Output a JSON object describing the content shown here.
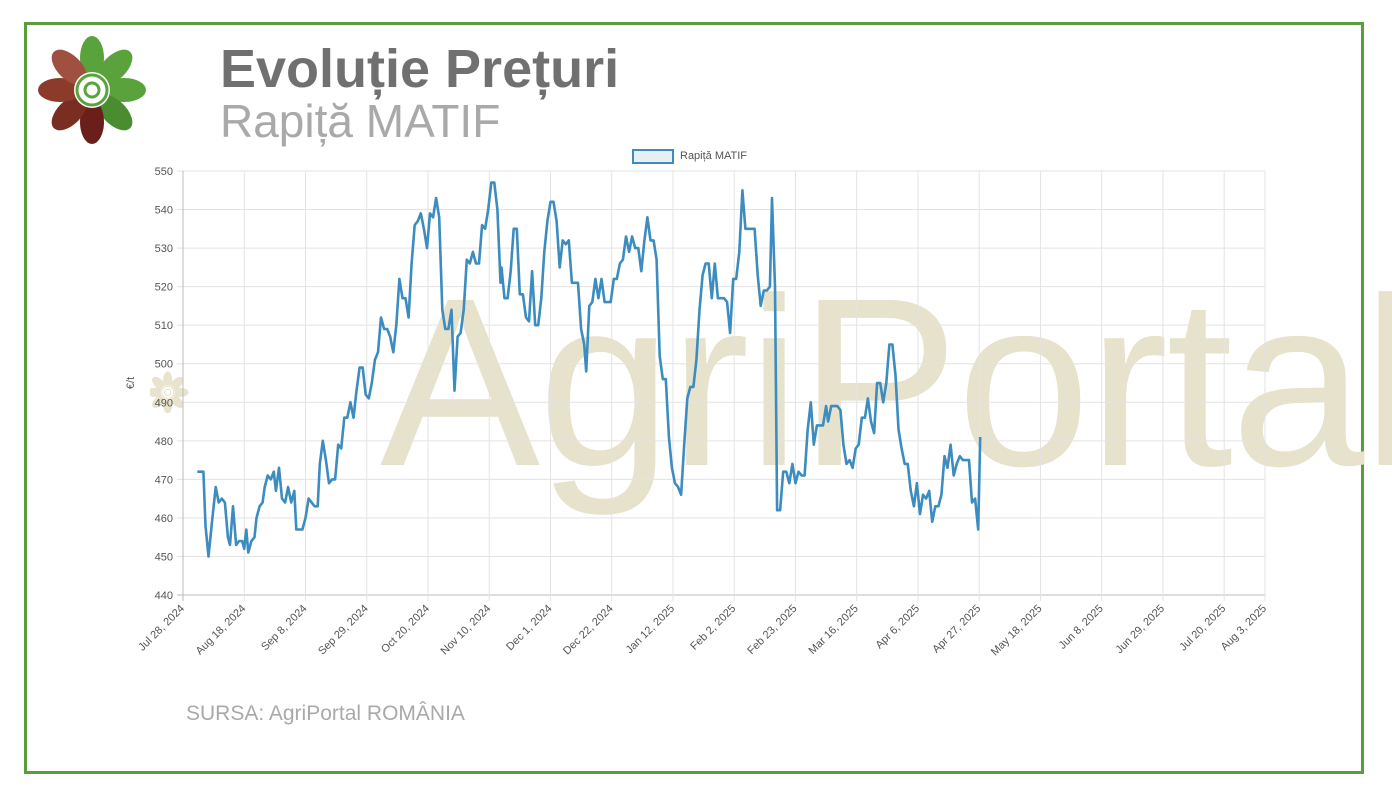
{
  "header": {
    "title": "Evoluție Prețuri",
    "subtitle": "Rapiță MATIF"
  },
  "footer": {
    "source": "SURSA: AgriPortal ROMÂNIA"
  },
  "watermark": {
    "text": "AgriPortal"
  },
  "logo": {
    "icon": "agriportal-flower-logo-icon"
  },
  "colors": {
    "frame": "#5a9e3c",
    "line": "#3c8cc0",
    "title": "#707070",
    "subtitle": "#a9a9a9"
  },
  "chart_data": {
    "type": "line",
    "title": "",
    "xlabel": "",
    "ylabel": "€/t",
    "ylim": [
      440,
      550
    ],
    "yticks": [
      440,
      450,
      460,
      470,
      480,
      490,
      500,
      510,
      520,
      530,
      540,
      550
    ],
    "grid": true,
    "legend": "top-center",
    "x_tick_labels": [
      "Jul 28, 2024",
      "Aug 18, 2024",
      "Sep 8, 2024",
      "Sep 29, 2024",
      "Oct 20, 2024",
      "Nov 10, 2024",
      "Dec 1, 2024",
      "Dec 22, 2024",
      "Jan 12, 2025",
      "Feb 2, 2025",
      "Feb 23, 2025",
      "Mar 16, 2025",
      "Apr 6, 2025",
      "Apr 27, 2025",
      "May 18, 2025",
      "Jun 8, 2025",
      "Jun 29, 2025",
      "Jul 20, 2025",
      "Aug 3, 2025"
    ],
    "x_tick_weeks": [
      0,
      3,
      6,
      9,
      12,
      15,
      18,
      21,
      24,
      27,
      30,
      33,
      36,
      39,
      42,
      45,
      48,
      51,
      53
    ],
    "series": [
      {
        "name": "Rapiță MATIF",
        "points": [
          [
            0.7,
            472
          ],
          [
            1.0,
            472
          ],
          [
            1.1,
            458
          ],
          [
            1.25,
            450
          ],
          [
            1.4,
            458
          ],
          [
            1.6,
            468
          ],
          [
            1.75,
            464
          ],
          [
            1.9,
            465
          ],
          [
            2.05,
            464
          ],
          [
            2.2,
            455
          ],
          [
            2.3,
            453
          ],
          [
            2.45,
            463
          ],
          [
            2.6,
            453
          ],
          [
            2.75,
            454
          ],
          [
            2.9,
            454
          ],
          [
            3.0,
            452
          ],
          [
            3.1,
            457
          ],
          [
            3.2,
            451
          ],
          [
            3.35,
            454
          ],
          [
            3.5,
            455
          ],
          [
            3.6,
            460
          ],
          [
            3.75,
            463
          ],
          [
            3.9,
            464
          ],
          [
            4.0,
            468
          ],
          [
            4.15,
            471
          ],
          [
            4.3,
            470
          ],
          [
            4.45,
            472
          ],
          [
            4.55,
            467
          ],
          [
            4.7,
            473
          ],
          [
            4.85,
            465
          ],
          [
            5.0,
            464
          ],
          [
            5.15,
            468
          ],
          [
            5.3,
            464
          ],
          [
            5.45,
            467
          ],
          [
            5.55,
            457
          ],
          [
            5.7,
            457
          ],
          [
            5.85,
            457
          ],
          [
            6.0,
            460
          ],
          [
            6.15,
            465
          ],
          [
            6.3,
            464
          ],
          [
            6.45,
            463
          ],
          [
            6.6,
            463
          ],
          [
            6.7,
            474
          ],
          [
            6.85,
            480
          ],
          [
            7.0,
            475
          ],
          [
            7.15,
            469
          ],
          [
            7.3,
            470
          ],
          [
            7.45,
            470
          ],
          [
            7.6,
            479
          ],
          [
            7.75,
            478
          ],
          [
            7.9,
            486
          ],
          [
            8.05,
            486
          ],
          [
            8.2,
            490
          ],
          [
            8.35,
            486
          ],
          [
            8.5,
            493
          ],
          [
            8.65,
            499
          ],
          [
            8.8,
            499
          ],
          [
            8.95,
            492
          ],
          [
            9.1,
            491
          ],
          [
            9.25,
            495
          ],
          [
            9.4,
            501
          ],
          [
            9.55,
            503
          ],
          [
            9.7,
            512
          ],
          [
            9.85,
            509
          ],
          [
            10.0,
            509
          ],
          [
            10.15,
            507
          ],
          [
            10.3,
            503
          ],
          [
            10.45,
            510
          ],
          [
            10.6,
            522
          ],
          [
            10.75,
            517
          ],
          [
            10.9,
            517
          ],
          [
            11.05,
            512
          ],
          [
            11.2,
            526
          ],
          [
            11.35,
            536
          ],
          [
            11.5,
            537
          ],
          [
            11.65,
            539
          ],
          [
            11.8,
            535
          ],
          [
            11.95,
            530
          ],
          [
            12.1,
            539
          ],
          [
            12.25,
            538
          ],
          [
            12.4,
            543
          ],
          [
            12.55,
            538
          ],
          [
            12.7,
            514
          ],
          [
            12.85,
            509
          ],
          [
            13.0,
            509
          ],
          [
            13.15,
            514
          ],
          [
            13.3,
            493
          ],
          [
            13.45,
            507
          ],
          [
            13.6,
            508
          ],
          [
            13.75,
            514
          ],
          [
            13.9,
            527
          ],
          [
            14.05,
            526
          ],
          [
            14.2,
            529
          ],
          [
            14.35,
            526
          ],
          [
            14.5,
            526
          ],
          [
            14.65,
            536
          ],
          [
            14.8,
            535
          ],
          [
            14.95,
            540
          ],
          [
            15.1,
            547
          ],
          [
            15.25,
            547
          ],
          [
            15.4,
            540
          ],
          [
            15.55,
            521
          ],
          [
            15.6,
            525
          ],
          [
            15.75,
            517
          ],
          [
            15.9,
            517
          ],
          [
            16.05,
            524
          ],
          [
            16.2,
            535
          ],
          [
            16.35,
            535
          ],
          [
            16.5,
            518
          ],
          [
            16.65,
            518
          ],
          [
            16.8,
            512
          ],
          [
            16.95,
            511
          ],
          [
            17.1,
            524
          ],
          [
            17.25,
            510
          ],
          [
            17.4,
            510
          ],
          [
            17.55,
            517
          ],
          [
            17.7,
            529
          ],
          [
            17.85,
            537
          ],
          [
            18.0,
            542
          ],
          [
            18.15,
            542
          ],
          [
            18.3,
            537
          ],
          [
            18.45,
            525
          ],
          [
            18.6,
            532
          ],
          [
            18.75,
            531
          ],
          [
            18.9,
            532
          ],
          [
            19.05,
            521
          ],
          [
            19.2,
            521
          ],
          [
            19.35,
            521
          ],
          [
            19.5,
            509
          ],
          [
            19.65,
            505
          ],
          [
            19.75,
            498
          ],
          [
            19.9,
            515
          ],
          [
            20.05,
            516
          ],
          [
            20.2,
            522
          ],
          [
            20.35,
            517
          ],
          [
            20.5,
            522
          ],
          [
            20.65,
            516
          ],
          [
            20.8,
            516
          ],
          [
            20.95,
            516
          ],
          [
            21.1,
            522
          ],
          [
            21.25,
            522
          ],
          [
            21.4,
            526
          ],
          [
            21.55,
            527
          ],
          [
            21.7,
            533
          ],
          [
            21.85,
            529
          ],
          [
            22.0,
            533
          ],
          [
            22.15,
            530
          ],
          [
            22.3,
            530
          ],
          [
            22.45,
            524
          ],
          [
            22.6,
            532
          ],
          [
            22.75,
            538
          ],
          [
            22.9,
            532
          ],
          [
            23.05,
            532
          ],
          [
            23.2,
            527
          ],
          [
            23.35,
            502
          ],
          [
            23.5,
            496
          ],
          [
            23.65,
            496
          ],
          [
            23.8,
            481
          ],
          [
            23.95,
            473
          ],
          [
            24.1,
            469
          ],
          [
            24.25,
            468
          ],
          [
            24.4,
            466
          ],
          [
            24.55,
            479
          ],
          [
            24.7,
            491
          ],
          [
            24.85,
            494
          ],
          [
            25.0,
            494
          ],
          [
            25.15,
            501
          ],
          [
            25.3,
            514
          ],
          [
            25.45,
            523
          ],
          [
            25.6,
            526
          ],
          [
            25.75,
            526
          ],
          [
            25.9,
            517
          ],
          [
            26.05,
            526
          ],
          [
            26.2,
            517
          ],
          [
            26.35,
            517
          ],
          [
            26.5,
            517
          ],
          [
            26.65,
            516
          ],
          [
            26.8,
            508
          ],
          [
            26.95,
            522
          ],
          [
            27.1,
            522
          ],
          [
            27.25,
            529
          ],
          [
            27.4,
            545
          ],
          [
            27.55,
            535
          ],
          [
            27.7,
            535
          ],
          [
            27.85,
            535
          ],
          [
            28.0,
            535
          ],
          [
            28.15,
            523
          ],
          [
            28.3,
            515
          ],
          [
            28.45,
            519
          ],
          [
            28.6,
            519
          ],
          [
            28.75,
            520
          ],
          [
            28.85,
            543
          ],
          [
            29.0,
            520
          ],
          [
            29.1,
            462
          ],
          [
            29.25,
            462
          ],
          [
            29.4,
            472
          ],
          [
            29.55,
            472
          ],
          [
            29.7,
            469
          ],
          [
            29.85,
            474
          ],
          [
            30.0,
            469
          ],
          [
            30.15,
            472
          ],
          [
            30.3,
            471
          ],
          [
            30.45,
            471
          ],
          [
            30.6,
            483
          ],
          [
            30.75,
            490
          ],
          [
            30.9,
            479
          ],
          [
            31.05,
            484
          ],
          [
            31.2,
            484
          ],
          [
            31.35,
            484
          ],
          [
            31.5,
            489
          ],
          [
            31.6,
            485
          ],
          [
            31.75,
            489
          ],
          [
            31.9,
            489
          ],
          [
            32.05,
            489
          ],
          [
            32.2,
            488
          ],
          [
            32.35,
            479
          ],
          [
            32.5,
            474
          ],
          [
            32.65,
            475
          ],
          [
            32.8,
            473
          ],
          [
            32.95,
            478
          ],
          [
            33.1,
            479
          ],
          [
            33.25,
            486
          ],
          [
            33.4,
            486
          ],
          [
            33.55,
            491
          ],
          [
            33.7,
            485
          ],
          [
            33.85,
            482
          ],
          [
            34.0,
            495
          ],
          [
            34.15,
            495
          ],
          [
            34.3,
            490
          ],
          [
            34.45,
            495
          ],
          [
            34.6,
            505
          ],
          [
            34.75,
            505
          ],
          [
            34.9,
            497
          ],
          [
            35.05,
            483
          ],
          [
            35.2,
            478
          ],
          [
            35.35,
            474
          ],
          [
            35.5,
            474
          ],
          [
            35.65,
            467
          ],
          [
            35.8,
            463
          ],
          [
            35.95,
            469
          ],
          [
            36.1,
            461
          ],
          [
            36.25,
            466
          ],
          [
            36.4,
            465
          ],
          [
            36.55,
            467
          ],
          [
            36.7,
            459
          ],
          [
            36.85,
            463
          ],
          [
            37.0,
            463
          ],
          [
            37.15,
            466
          ],
          [
            37.3,
            476
          ],
          [
            37.45,
            473
          ],
          [
            37.6,
            479
          ],
          [
            37.75,
            471
          ],
          [
            37.9,
            474
          ],
          [
            38.05,
            476
          ],
          [
            38.2,
            475
          ],
          [
            38.35,
            475
          ],
          [
            38.5,
            475
          ],
          [
            38.65,
            464
          ],
          [
            38.8,
            465
          ],
          [
            38.95,
            457
          ],
          [
            39.05,
            481
          ]
        ]
      }
    ]
  }
}
